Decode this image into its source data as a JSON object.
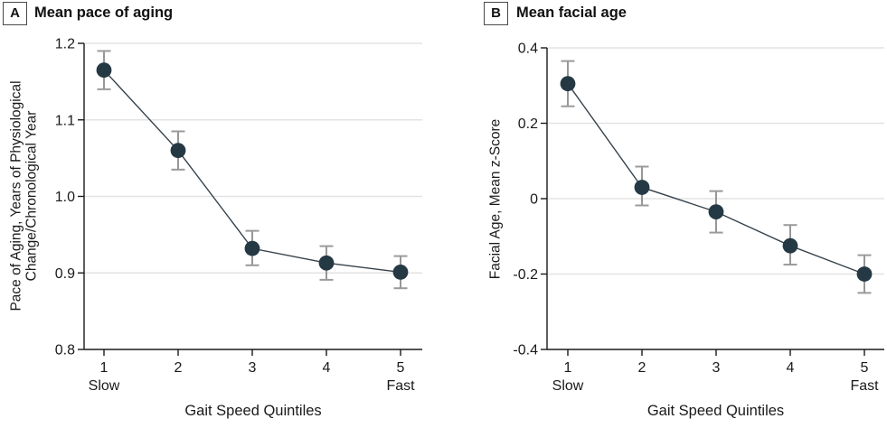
{
  "panels": [
    {
      "tag": "A",
      "title": "Mean pace of aging",
      "ylabel_line1": "Pace of Aging, Years of Physiological",
      "ylabel_line2": "Change/Chronological Year",
      "xlabel": "Gait Speed Quintiles"
    },
    {
      "tag": "B",
      "title": "Mean facial age",
      "ylabel_line1": "Facial Age, Mean z-Score",
      "ylabel_line2": "",
      "xlabel": "Gait Speed Quintiles"
    }
  ],
  "chart_data": [
    {
      "type": "line",
      "panel": "A",
      "title": "Mean pace of aging",
      "xlabel": "Gait Speed Quintiles",
      "ylabel": "Pace of Aging, Years of Physiological Change/Chronological Year",
      "x": [
        1,
        2,
        3,
        4,
        5
      ],
      "x_tick_labels": [
        "1",
        "2",
        "3",
        "4",
        "5"
      ],
      "x_end_labels": {
        "first": "Slow",
        "last": "Fast"
      },
      "values": [
        1.165,
        1.06,
        0.932,
        0.913,
        0.901
      ],
      "ci_low": [
        1.14,
        1.035,
        0.91,
        0.891,
        0.88
      ],
      "ci_high": [
        1.19,
        1.085,
        0.955,
        0.935,
        0.922
      ],
      "ylim": [
        0.8,
        1.2
      ],
      "yticks": [
        1.2,
        1.1,
        1.0,
        0.9,
        0.8
      ],
      "ytick_labels": [
        "1.2",
        "1.1",
        "1.0",
        "0.9",
        "0.8"
      ],
      "grid": true,
      "marker": "filled-circle-with-error-bars",
      "legend": "none"
    },
    {
      "type": "line",
      "panel": "B",
      "title": "Mean facial age",
      "xlabel": "Gait Speed Quintiles",
      "ylabel": "Facial Age, Mean z-Score",
      "x": [
        1,
        2,
        3,
        4,
        5
      ],
      "x_tick_labels": [
        "1",
        "2",
        "3",
        "4",
        "5"
      ],
      "x_end_labels": {
        "first": "Slow",
        "last": "Fast"
      },
      "values": [
        0.305,
        0.03,
        -0.035,
        -0.125,
        -0.2
      ],
      "ci_low": [
        0.245,
        -0.018,
        -0.09,
        -0.175,
        -0.25
      ],
      "ci_high": [
        0.365,
        0.085,
        0.02,
        -0.07,
        -0.15
      ],
      "ylim": [
        -0.4,
        0.4
      ],
      "yticks": [
        0.4,
        0.2,
        0,
        -0.2,
        -0.4
      ],
      "ytick_labels": [
        "0.4",
        "0.2",
        "0",
        "-0.2",
        "-0.4"
      ],
      "grid": true,
      "marker": "filled-circle-with-error-bars",
      "legend": "none"
    }
  ],
  "colors": {
    "point": "#253944",
    "series_line": "#36424a",
    "error_bar": "#7d7d7d",
    "error_bar_cap": "#9a9a9a",
    "gridline": "#e3e3e3",
    "axis": "#1a1a1a",
    "text": "#1a1a1a",
    "background": "#ffffff"
  }
}
